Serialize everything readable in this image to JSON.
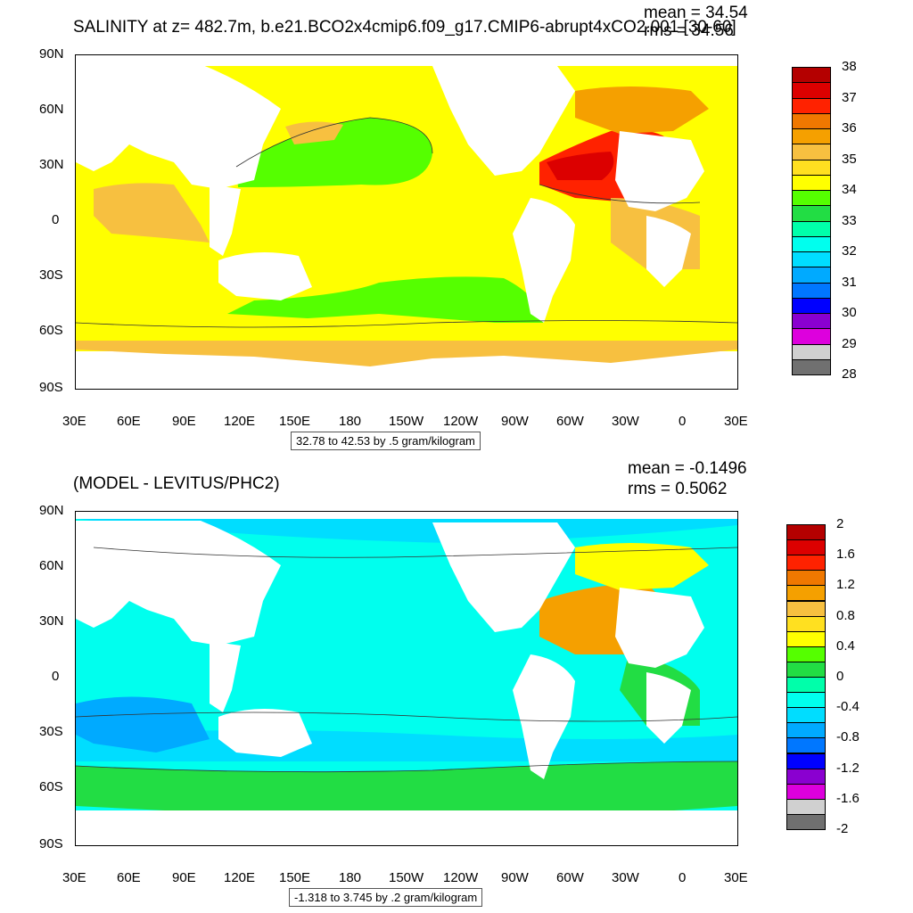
{
  "panels": [
    {
      "title": "SALINITY at z= 482.7m, b.e21.BCO2x4cmip6.f09_g17.CMIP6-abrupt4xCO2.001 [30-60]",
      "mean": "mean = 34.54",
      "rms": "rms = 34.56",
      "info": "32.78 to 42.53 by .5 gram/kilogram",
      "lat_labels": [
        "90N",
        "60N",
        "30N",
        "0",
        "30S",
        "60S",
        "90S"
      ],
      "lon_labels": [
        "30E",
        "60E",
        "90E",
        "120E",
        "150E",
        "180",
        "150W",
        "120W",
        "90W",
        "60W",
        "30W",
        "0",
        "30E"
      ],
      "colorbar": {
        "labels": [
          "38",
          "37",
          "36",
          "35",
          "34",
          "33",
          "32",
          "31",
          "30",
          "29",
          "28"
        ],
        "colors": [
          "#b40000",
          "#dc0000",
          "#ff2200",
          "#f07800",
          "#f5a000",
          "#f7c040",
          "#ffe020",
          "#ffff00",
          "#55ff00",
          "#22dd44",
          "#00ffaa",
          "#00ffee",
          "#00ddff",
          "#00aaff",
          "#0077ff",
          "#0000ff",
          "#8a00d0",
          "#dd00dd",
          "#d0d0d0",
          "#707070"
        ]
      }
    },
    {
      "title": "(MODEL - LEVITUS/PHC2)",
      "mean": "mean = -0.1496",
      "rms": "rms = 0.5062",
      "info": "-1.318 to 3.745 by .2 gram/kilogram",
      "lat_labels": [
        "90N",
        "60N",
        "30N",
        "0",
        "30S",
        "60S",
        "90S"
      ],
      "lon_labels": [
        "30E",
        "60E",
        "90E",
        "120E",
        "150E",
        "180",
        "150W",
        "120W",
        "90W",
        "60W",
        "30W",
        "0",
        "30E"
      ],
      "colorbar": {
        "labels": [
          "2",
          "1.6",
          "1.2",
          "0.8",
          "0.4",
          "0",
          "-0.4",
          "-0.8",
          "-1.2",
          "-1.6",
          "-2"
        ],
        "colors": [
          "#b40000",
          "#dc0000",
          "#ff2200",
          "#f07800",
          "#f5a000",
          "#f7c040",
          "#ffe020",
          "#ffff00",
          "#55ff00",
          "#22dd44",
          "#00ffaa",
          "#00ffee",
          "#00ddff",
          "#00aaff",
          "#0077ff",
          "#0000ff",
          "#8a00d0",
          "#dd00dd",
          "#d0d0d0",
          "#707070"
        ]
      }
    }
  ]
}
